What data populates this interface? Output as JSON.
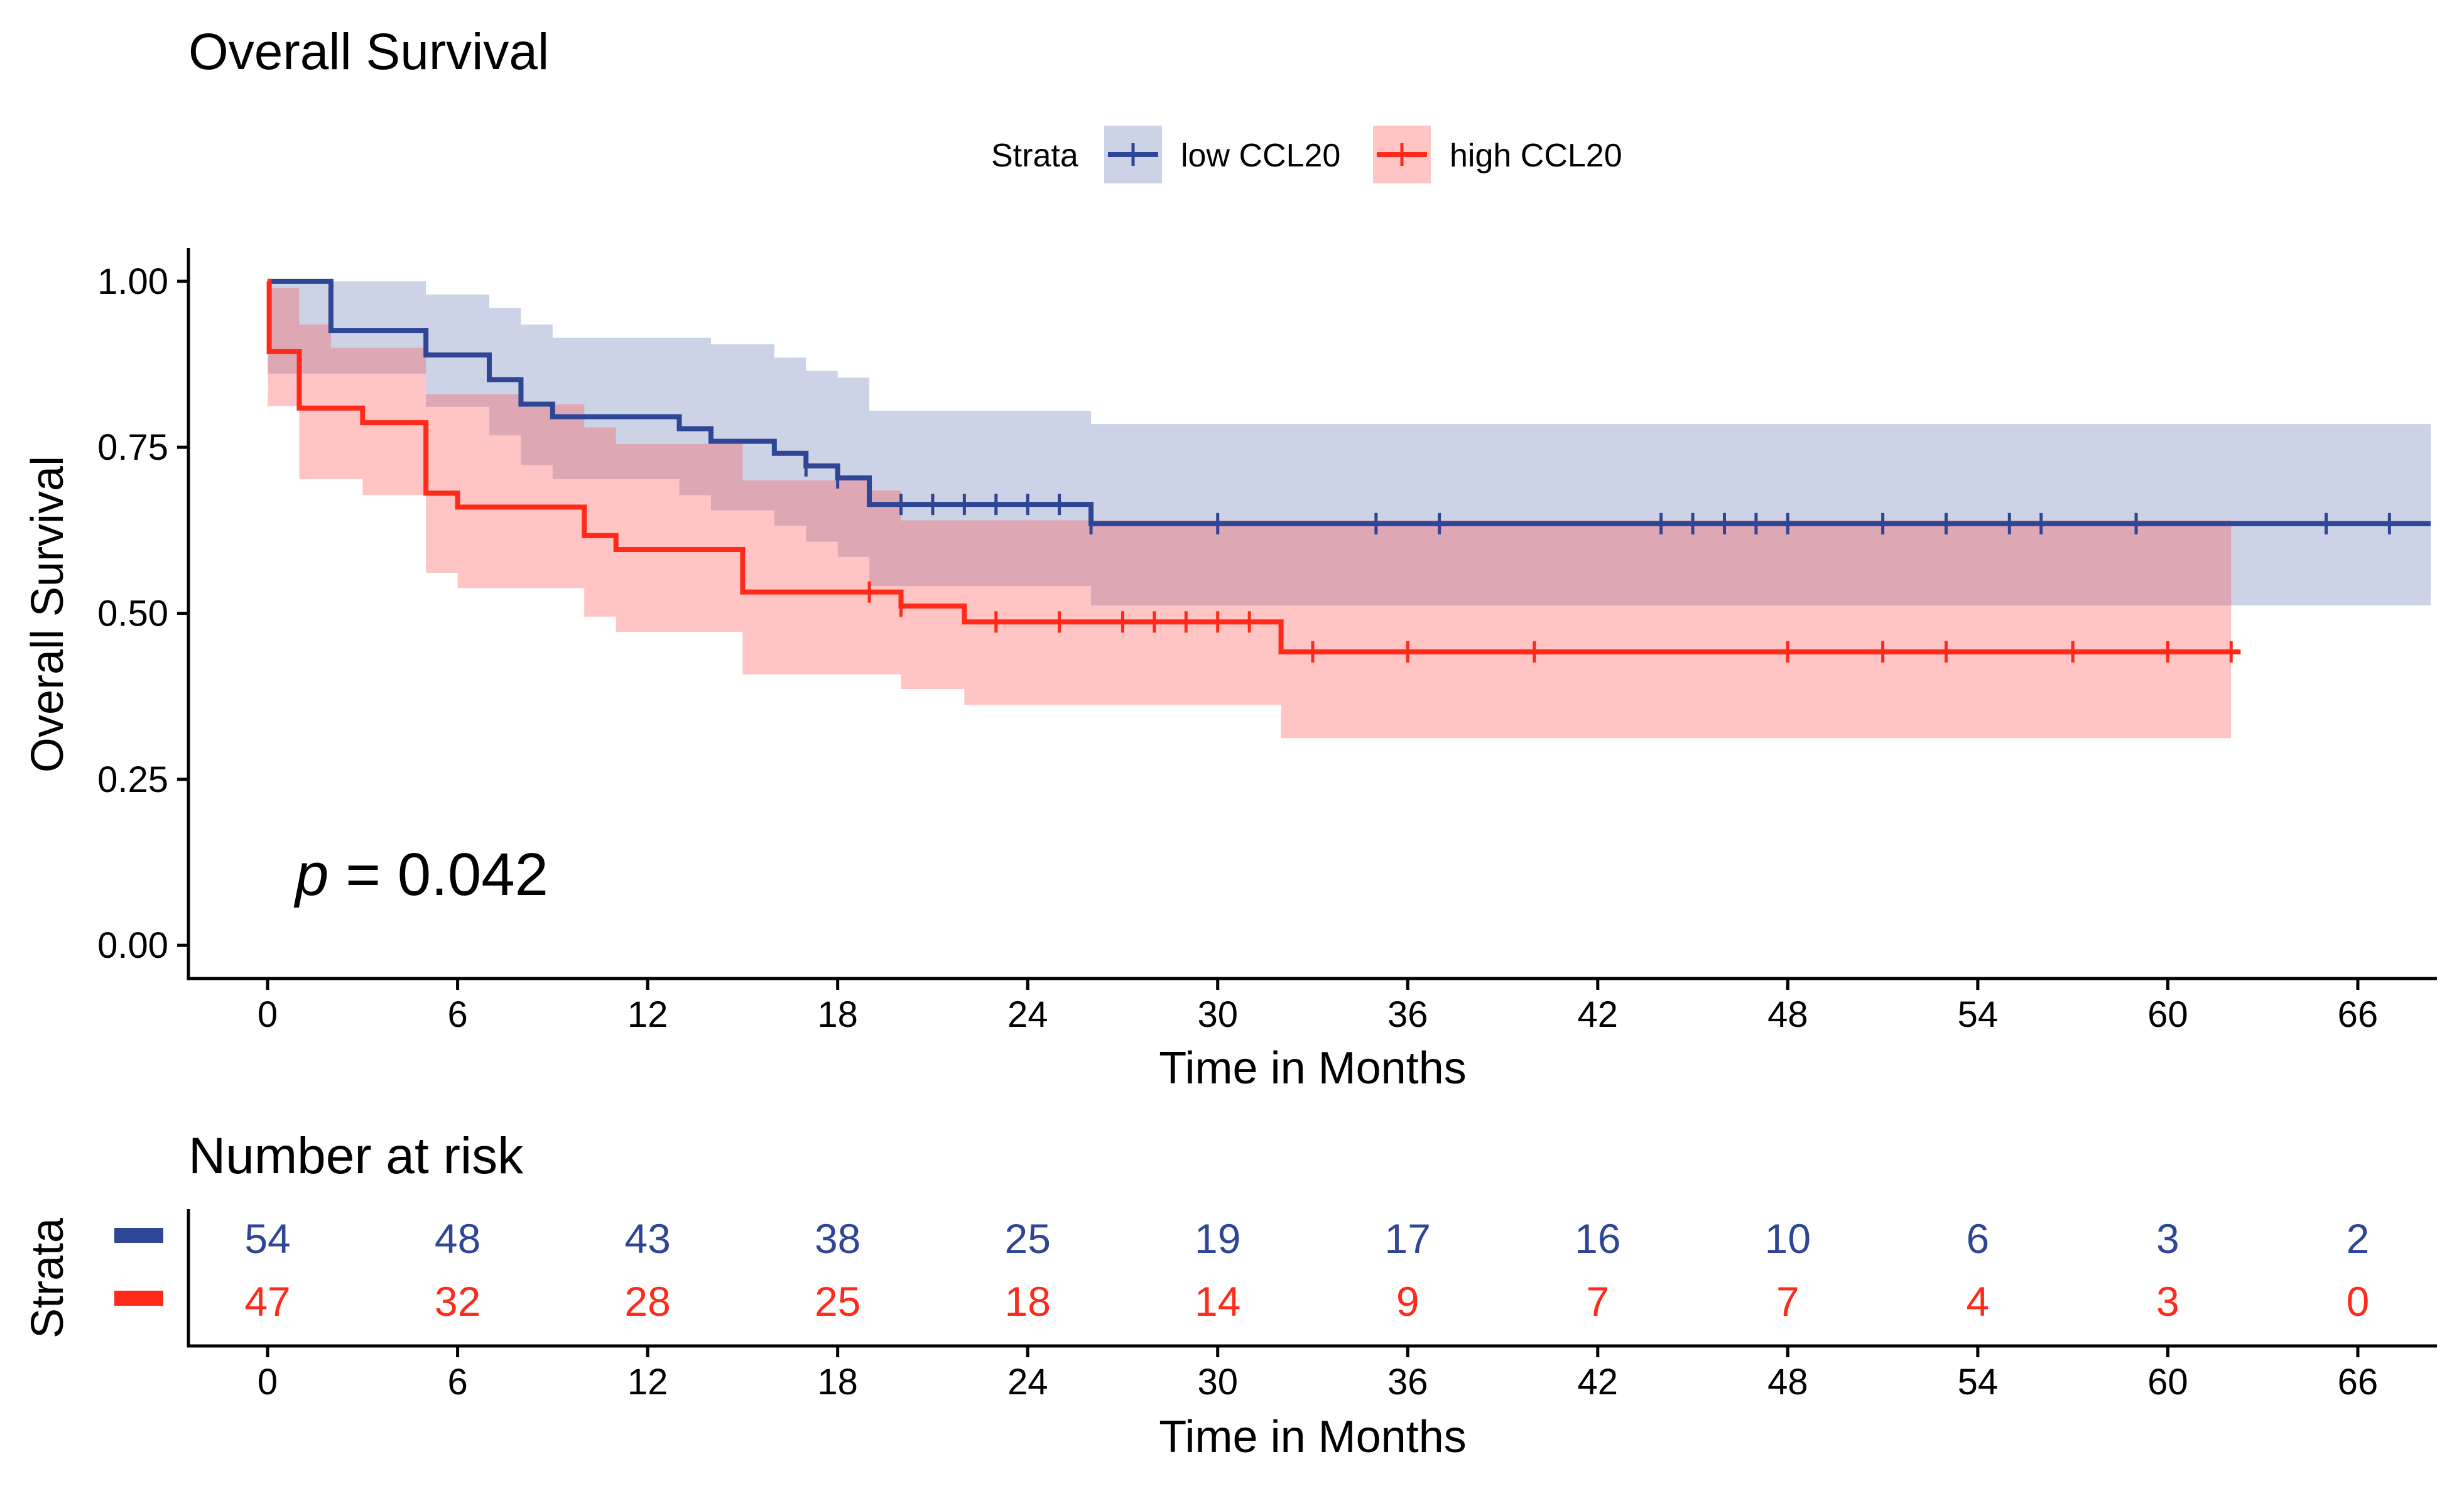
{
  "chart_data": [
    {
      "type": "line",
      "subtype": "kaplan-meier",
      "title": "Overall Survival",
      "xlabel": "Time in Months",
      "ylabel": "Overall Survival",
      "xlim": [
        -2.5,
        68.5
      ],
      "ylim": [
        -0.05,
        1.05
      ],
      "xticks": [
        0,
        6,
        12,
        18,
        24,
        30,
        36,
        42,
        48,
        54,
        60,
        66
      ],
      "yticks": [
        0.0,
        0.25,
        0.5,
        0.75,
        1.0
      ],
      "ytick_labels": [
        "0.00",
        "0.25",
        "0.50",
        "0.75",
        "1.00"
      ],
      "legend": {
        "title": "Strata",
        "position": "top",
        "entries": [
          "low CCL20",
          "high CCL20"
        ]
      },
      "annotation": {
        "italic": "p",
        "text": " = 0.042",
        "x": 0.3,
        "y": 0.105
      },
      "series": [
        {
          "name": "low CCL20",
          "color": "#2F4596",
          "band_color": "#2F4596",
          "steps": [
            [
              0,
              1.0
            ],
            [
              2,
              0.926
            ],
            [
              5,
              0.889
            ],
            [
              7,
              0.852
            ],
            [
              8,
              0.815
            ],
            [
              9,
              0.796
            ],
            [
              13,
              0.778
            ],
            [
              14,
              0.759
            ],
            [
              16,
              0.741
            ],
            [
              17,
              0.722
            ],
            [
              18,
              0.704
            ],
            [
              19,
              0.664
            ],
            [
              26,
              0.635
            ],
            [
              68.3,
              0.635
            ]
          ],
          "ci_lower": [
            [
              0,
              0.861
            ],
            [
              2,
              0.861
            ],
            [
              5,
              0.811
            ],
            [
              7,
              0.768
            ],
            [
              8,
              0.723
            ],
            [
              9,
              0.702
            ],
            [
              13,
              0.678
            ],
            [
              14,
              0.655
            ],
            [
              16,
              0.632
            ],
            [
              17,
              0.608
            ],
            [
              18,
              0.585
            ],
            [
              19,
              0.541
            ],
            [
              26,
              0.512
            ],
            [
              68.3,
              0.512
            ]
          ],
          "ci_upper": [
            [
              0,
              1.0
            ],
            [
              2,
              1.0
            ],
            [
              5,
              0.98
            ],
            [
              7,
              0.96
            ],
            [
              8,
              0.935
            ],
            [
              9,
              0.915
            ],
            [
              13,
              0.915
            ],
            [
              14,
              0.905
            ],
            [
              16,
              0.885
            ],
            [
              17,
              0.865
            ],
            [
              18,
              0.855
            ],
            [
              19,
              0.805
            ],
            [
              26,
              0.785
            ],
            [
              68.3,
              0.785
            ]
          ],
          "censor_times": [
            17,
            18,
            20,
            21,
            22,
            23,
            24,
            25,
            26,
            30,
            35,
            37,
            44,
            45,
            46,
            47,
            48,
            51,
            53,
            55,
            56,
            59,
            65,
            67
          ]
        },
        {
          "name": "high CCL20",
          "color": "#FF2A1A",
          "band_color": "#FF5555",
          "steps": [
            [
              0,
              1.0
            ],
            [
              0.05,
              0.894
            ],
            [
              1,
              0.809
            ],
            [
              3,
              0.787
            ],
            [
              5,
              0.681
            ],
            [
              6,
              0.66
            ],
            [
              10,
              0.617
            ],
            [
              11,
              0.596
            ],
            [
              15,
              0.532
            ],
            [
              20,
              0.511
            ],
            [
              22,
              0.487
            ],
            [
              32,
              0.442
            ],
            [
              62.3,
              0.442
            ]
          ],
          "ci_lower": [
            [
              0,
              0.812
            ],
            [
              1,
              0.702
            ],
            [
              3,
              0.678
            ],
            [
              5,
              0.561
            ],
            [
              6,
              0.538
            ],
            [
              10,
              0.495
            ],
            [
              11,
              0.472
            ],
            [
              15,
              0.408
            ],
            [
              20,
              0.386
            ],
            [
              22,
              0.362
            ],
            [
              32,
              0.312
            ],
            [
              62,
              0.312
            ]
          ],
          "ci_upper": [
            [
              0.05,
              0.99
            ],
            [
              1,
              0.935
            ],
            [
              2,
              0.9
            ],
            [
              5,
              0.83
            ],
            [
              8,
              0.815
            ],
            [
              10,
              0.78
            ],
            [
              11,
              0.755
            ],
            [
              14,
              0.755
            ],
            [
              15,
              0.7
            ],
            [
              19,
              0.685
            ],
            [
              20,
              0.64
            ],
            [
              32,
              0.64
            ],
            [
              62,
              0.64
            ]
          ],
          "censor_times": [
            19,
            20,
            23,
            25,
            27,
            28,
            29,
            30,
            31,
            33,
            36,
            40,
            48,
            51,
            53,
            57,
            60,
            62
          ]
        }
      ]
    },
    {
      "type": "table",
      "title": "Number at risk",
      "xlabel": "Time in Months",
      "ylabel": "Strata",
      "xticks": [
        0,
        6,
        12,
        18,
        24,
        30,
        36,
        42,
        48,
        54,
        60,
        66
      ],
      "rows": [
        {
          "name": "low CCL20",
          "color": "#2F4596",
          "values": [
            54,
            48,
            43,
            38,
            25,
            19,
            17,
            16,
            10,
            6,
            3,
            2
          ]
        },
        {
          "name": "high CCL20",
          "color": "#FF2A1A",
          "values": [
            47,
            32,
            28,
            25,
            18,
            14,
            9,
            7,
            7,
            4,
            3,
            0
          ]
        }
      ]
    }
  ]
}
